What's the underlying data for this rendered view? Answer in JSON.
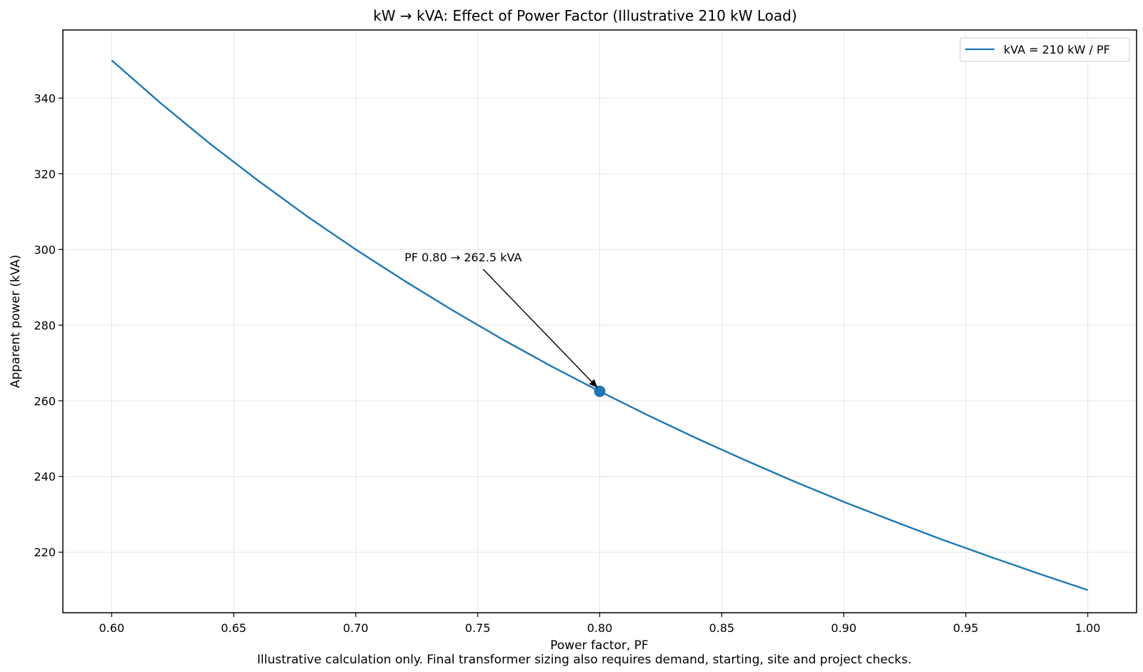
{
  "chart_data": {
    "type": "line",
    "title": "kW → kVA: Effect of Power Factor (Illustrative 210 kW Load)",
    "xlabel": "Power factor, PF",
    "ylabel": "Apparent power (kVA)",
    "xlim": [
      0.58,
      1.02
    ],
    "ylim": [
      204,
      358
    ],
    "xticks": [
      0.6,
      0.65,
      0.7,
      0.75,
      0.8,
      0.85,
      0.9,
      0.95,
      1.0
    ],
    "xtick_labels": [
      "0.60",
      "0.65",
      "0.70",
      "0.75",
      "0.80",
      "0.85",
      "0.90",
      "0.95",
      "1.00"
    ],
    "yticks": [
      220,
      240,
      260,
      280,
      300,
      320,
      340
    ],
    "ytick_labels": [
      "220",
      "240",
      "260",
      "280",
      "300",
      "320",
      "340"
    ],
    "grid": true,
    "legend_position": "top-right",
    "series": [
      {
        "name": "kVA = 210 kW / PF",
        "color": "#1f77b4",
        "x": [
          0.6,
          0.62,
          0.64,
          0.66,
          0.68,
          0.7,
          0.72,
          0.74,
          0.76,
          0.78,
          0.8,
          0.82,
          0.84,
          0.86,
          0.88,
          0.9,
          0.92,
          0.94,
          0.96,
          0.98,
          1.0
        ],
        "y": [
          350.0,
          338.7,
          328.1,
          318.2,
          308.8,
          300.0,
          291.7,
          283.8,
          276.3,
          269.2,
          262.5,
          256.1,
          250.0,
          244.2,
          238.6,
          233.3,
          228.3,
          223.4,
          218.8,
          214.3,
          210.0
        ]
      }
    ],
    "highlight_point": {
      "x": 0.8,
      "y": 262.5,
      "color": "#1f77b4"
    },
    "annotation": {
      "text": "PF 0.80 → 262.5 kVA",
      "text_x": 0.72,
      "text_y": 298,
      "target_x": 0.8,
      "target_y": 262.5
    },
    "footnote": "Illustrative calculation only. Final transformer sizing also requires demand, starting, site and project checks."
  }
}
